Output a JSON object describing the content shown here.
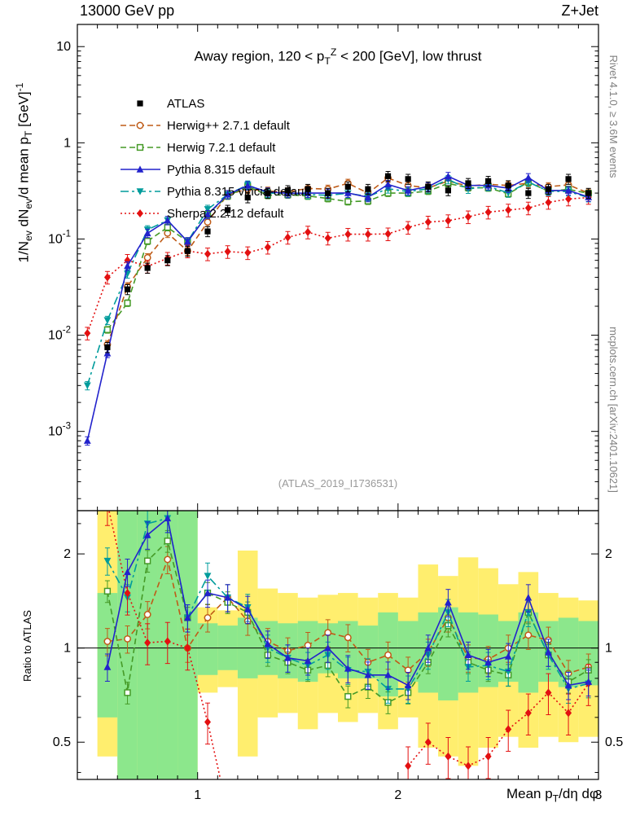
{
  "header": {
    "left": "13000 GeV pp",
    "right": "Z+Jet"
  },
  "side_texts": {
    "top_right": "Rivet 4.1.0, ≥ 3.6M events",
    "bottom_right": "mcplots.cern.ch [arXiv:2401.10621]"
  },
  "watermark": "(ATLAS_2019_I1736531)",
  "chart_data": {
    "type": "line",
    "title": "Away region, 120 < p_{T}^{Z} < 200 [GeV], low thrust",
    "ylabel": "1/N_{ev} dN_{ev}/d mean p_{T} [GeV]^{-1}",
    "ratio_ylabel": "Ratio to ATLAS",
    "xlabel": "Mean p_{T}/dη dφ",
    "x_range": [
      0.4,
      3.0
    ],
    "y_range_main": [
      0.00015,
      17
    ],
    "y_range_ratio": [
      0.38,
      2.75
    ],
    "x_ticks_major": [
      {
        "v": 1,
        "label": "1"
      },
      {
        "v": 2,
        "label": "2"
      },
      {
        "v": 3,
        "label": "3"
      }
    ],
    "y_ticks_main": [
      {
        "v": 10,
        "label": "10"
      },
      {
        "v": 1,
        "label": "1"
      },
      {
        "v": 0.1,
        "label": "10^{-1}"
      },
      {
        "v": 0.01,
        "label": "10^{-2}"
      },
      {
        "v": 0.001,
        "label": "10^{-3}"
      }
    ],
    "y_ticks_ratio": [
      {
        "v": 0.5,
        "label": "0.5"
      },
      {
        "v": 1,
        "label": "1"
      },
      {
        "v": 2,
        "label": "2"
      }
    ],
    "y_ticks_ratio_minor": [
      0.4,
      0.6,
      0.7,
      0.8,
      0.9,
      2.5
    ],
    "band_colors": {
      "yellow": "#ffee6e",
      "green": "#8ce78c"
    },
    "x": [
      0.45,
      0.55,
      0.65,
      0.75,
      0.85,
      0.95,
      1.05,
      1.15,
      1.25,
      1.35,
      1.45,
      1.55,
      1.65,
      1.75,
      1.85,
      1.95,
      2.05,
      2.15,
      2.25,
      2.35,
      2.45,
      2.55,
      2.65,
      2.75,
      2.85,
      2.95
    ],
    "series": [
      {
        "id": "atlas",
        "label": "ATLAS",
        "color": "#000000",
        "marker": "square-filled",
        "line_style": "none",
        "err_frac": 0.12,
        "main": [
          null,
          0.0075,
          0.03,
          0.05,
          0.06,
          0.075,
          0.12,
          0.2,
          0.27,
          0.3,
          0.32,
          0.33,
          0.3,
          0.35,
          0.33,
          0.45,
          0.42,
          0.35,
          0.32,
          0.38,
          0.4,
          0.36,
          0.3,
          0.33,
          0.42,
          0.3
        ],
        "ratio": null
      },
      {
        "id": "herwigpp",
        "label": "Herwig++ 2.7.1 default",
        "color": "#bf5b17",
        "marker": "circle-open",
        "line_style": "dashed",
        "err_frac": 0.1,
        "main": [
          null,
          0.008,
          0.032,
          0.064,
          0.115,
          0.075,
          0.15,
          0.29,
          0.33,
          0.315,
          0.31,
          0.335,
          0.33,
          0.38,
          0.3,
          0.43,
          0.36,
          0.34,
          0.4,
          0.355,
          0.37,
          0.36,
          0.38,
          0.35,
          0.365,
          0.3
        ],
        "ratio": [
          null,
          1.05,
          1.07,
          1.28,
          1.92,
          1.0,
          1.25,
          1.45,
          1.22,
          1.05,
          0.98,
          1.02,
          1.12,
          1.08,
          0.9,
          0.95,
          0.85,
          0.97,
          1.25,
          0.93,
          0.92,
          1.0,
          1.1,
          1.06,
          0.83,
          0.87
        ]
      },
      {
        "id": "herwig7",
        "label": "Herwig 7.2.1 default",
        "color": "#459a27",
        "marker": "square-open",
        "line_style": "dashed",
        "err_frac": 0.08,
        "main": [
          null,
          0.0114,
          0.0216,
          0.095,
          0.132,
          0.094,
          0.18,
          0.28,
          0.351,
          0.285,
          0.288,
          0.28,
          0.264,
          0.245,
          0.248,
          0.3,
          0.3,
          0.315,
          0.378,
          0.342,
          0.34,
          0.295,
          0.39,
          0.314,
          0.328,
          0.298
        ],
        "ratio": [
          null,
          1.52,
          0.72,
          1.9,
          2.2,
          1.25,
          1.5,
          1.4,
          1.3,
          0.95,
          0.9,
          0.85,
          0.88,
          0.7,
          0.75,
          0.67,
          0.72,
          0.9,
          1.18,
          0.9,
          0.85,
          0.82,
          1.3,
          0.95,
          0.78,
          0.85
        ]
      },
      {
        "id": "pythia",
        "label": "Pythia 8.315 default",
        "color": "#2222cc",
        "marker": "triangle-up",
        "line_style": "solid",
        "err_frac": 0.1,
        "main": [
          0.0008,
          0.0065,
          0.0525,
          0.115,
          0.156,
          0.094,
          0.18,
          0.29,
          0.359,
          0.309,
          0.298,
          0.3,
          0.3,
          0.301,
          0.271,
          0.369,
          0.319,
          0.35,
          0.448,
          0.361,
          0.36,
          0.338,
          0.435,
          0.32,
          0.319,
          0.273
        ],
        "ratio": [
          null,
          0.87,
          1.75,
          2.3,
          2.6,
          1.25,
          1.5,
          1.45,
          1.33,
          1.03,
          0.93,
          0.91,
          1.0,
          0.86,
          0.82,
          0.82,
          0.76,
          1.0,
          1.4,
          0.95,
          0.9,
          0.94,
          1.45,
          0.97,
          0.76,
          0.78
        ]
      },
      {
        "id": "vincia",
        "label": "Pythia 8.315 vincia-default",
        "color": "#009c9c",
        "marker": "triangle-down",
        "line_style": "dashdot",
        "err_frac": 0.1,
        "main": [
          0.003,
          0.0143,
          0.0435,
          0.125,
          0.156,
          0.094,
          0.204,
          0.29,
          0.365,
          0.3,
          0.298,
          0.29,
          0.285,
          0.298,
          0.277,
          0.333,
          0.311,
          0.333,
          0.416,
          0.331,
          0.352,
          0.302,
          0.39,
          0.314,
          0.311,
          0.27
        ],
        "ratio": [
          null,
          1.9,
          1.45,
          2.5,
          2.6,
          1.25,
          1.7,
          1.45,
          1.35,
          1.0,
          0.93,
          0.88,
          0.95,
          0.85,
          0.84,
          0.74,
          0.74,
          0.95,
          1.3,
          0.87,
          0.88,
          0.84,
          1.3,
          0.95,
          0.74,
          0.77
        ]
      },
      {
        "id": "sherpa",
        "label": "Sherpa 2.2.12 default",
        "color": "#e31010",
        "marker": "diamond",
        "line_style": "dotted",
        "err_frac": 0.15,
        "main": [
          0.0105,
          0.04,
          0.06,
          0.052,
          0.063,
          0.075,
          0.07,
          0.074,
          0.072,
          0.082,
          0.104,
          0.118,
          0.102,
          0.112,
          0.112,
          0.113,
          0.132,
          0.15,
          0.155,
          0.17,
          0.19,
          0.2,
          0.21,
          0.24,
          0.26,
          0.27
        ],
        "ratio": [
          null,
          2.9,
          1.5,
          1.04,
          1.05,
          1.0,
          0.58,
          0.3,
          null,
          null,
          null,
          null,
          null,
          null,
          null,
          null,
          0.42,
          0.5,
          0.45,
          0.42,
          0.45,
          0.55,
          0.62,
          0.72,
          0.62,
          0.77
        ]
      }
    ],
    "bands": [
      {
        "x0": 0.5,
        "x1": 0.6,
        "yellow": [
          0.45,
          2.75
        ],
        "green": [
          0.6,
          1.5
        ]
      },
      {
        "x0": 0.6,
        "x1": 0.7,
        "yellow": [
          0.38,
          2.75
        ],
        "green": [
          0.38,
          2.75
        ]
      },
      {
        "x0": 0.7,
        "x1": 0.8,
        "yellow": [
          0.38,
          2.75
        ],
        "green": [
          0.38,
          2.75
        ]
      },
      {
        "x0": 0.8,
        "x1": 0.9,
        "yellow": [
          0.38,
          2.75
        ],
        "green": [
          0.38,
          2.75
        ]
      },
      {
        "x0": 0.9,
        "x1": 1.0,
        "yellow": [
          0.38,
          2.75
        ],
        "green": [
          0.38,
          2.75
        ]
      },
      {
        "x0": 1.0,
        "x1": 1.1,
        "yellow": [
          0.72,
          1.35
        ],
        "green": [
          0.82,
          1.2
        ]
      },
      {
        "x0": 1.1,
        "x1": 1.2,
        "yellow": [
          0.75,
          1.32
        ],
        "green": [
          0.85,
          1.18
        ]
      },
      {
        "x0": 1.2,
        "x1": 1.3,
        "yellow": [
          0.45,
          2.05
        ],
        "green": [
          0.8,
          1.25
        ]
      },
      {
        "x0": 1.3,
        "x1": 1.4,
        "yellow": [
          0.6,
          1.55
        ],
        "green": [
          0.82,
          1.22
        ]
      },
      {
        "x0": 1.4,
        "x1": 1.5,
        "yellow": [
          0.62,
          1.5
        ],
        "green": [
          0.8,
          1.2
        ]
      },
      {
        "x0": 1.5,
        "x1": 1.6,
        "yellow": [
          0.55,
          1.45
        ],
        "green": [
          0.78,
          1.22
        ]
      },
      {
        "x0": 1.6,
        "x1": 1.7,
        "yellow": [
          0.62,
          1.48
        ],
        "green": [
          0.83,
          1.2
        ]
      },
      {
        "x0": 1.7,
        "x1": 1.8,
        "yellow": [
          0.58,
          1.5
        ],
        "green": [
          0.8,
          1.22
        ]
      },
      {
        "x0": 1.8,
        "x1": 1.9,
        "yellow": [
          0.62,
          1.45
        ],
        "green": [
          0.8,
          1.18
        ]
      },
      {
        "x0": 1.9,
        "x1": 2.0,
        "yellow": [
          0.55,
          1.5
        ],
        "green": [
          0.7,
          1.3
        ]
      },
      {
        "x0": 2.0,
        "x1": 2.1,
        "yellow": [
          0.6,
          1.45
        ],
        "green": [
          0.78,
          1.22
        ]
      },
      {
        "x0": 2.1,
        "x1": 2.2,
        "yellow": [
          0.48,
          1.85
        ],
        "green": [
          0.72,
          1.3
        ]
      },
      {
        "x0": 2.2,
        "x1": 2.3,
        "yellow": [
          0.45,
          1.7
        ],
        "green": [
          0.68,
          1.35
        ]
      },
      {
        "x0": 2.3,
        "x1": 2.4,
        "yellow": [
          0.42,
          1.95
        ],
        "green": [
          0.72,
          1.3
        ]
      },
      {
        "x0": 2.4,
        "x1": 2.5,
        "yellow": [
          0.48,
          1.8
        ],
        "green": [
          0.75,
          1.28
        ]
      },
      {
        "x0": 2.5,
        "x1": 2.6,
        "yellow": [
          0.52,
          1.6
        ],
        "green": [
          0.78,
          1.22
        ]
      },
      {
        "x0": 2.6,
        "x1": 2.7,
        "yellow": [
          0.48,
          1.75
        ],
        "green": [
          0.72,
          1.3
        ]
      },
      {
        "x0": 2.7,
        "x1": 2.8,
        "yellow": [
          0.52,
          1.5
        ],
        "green": [
          0.78,
          1.22
        ]
      },
      {
        "x0": 2.8,
        "x1": 2.9,
        "yellow": [
          0.5,
          1.45
        ],
        "green": [
          0.75,
          1.25
        ]
      },
      {
        "x0": 2.9,
        "x1": 3.0,
        "yellow": [
          0.52,
          1.42
        ],
        "green": [
          0.76,
          1.22
        ]
      }
    ]
  }
}
